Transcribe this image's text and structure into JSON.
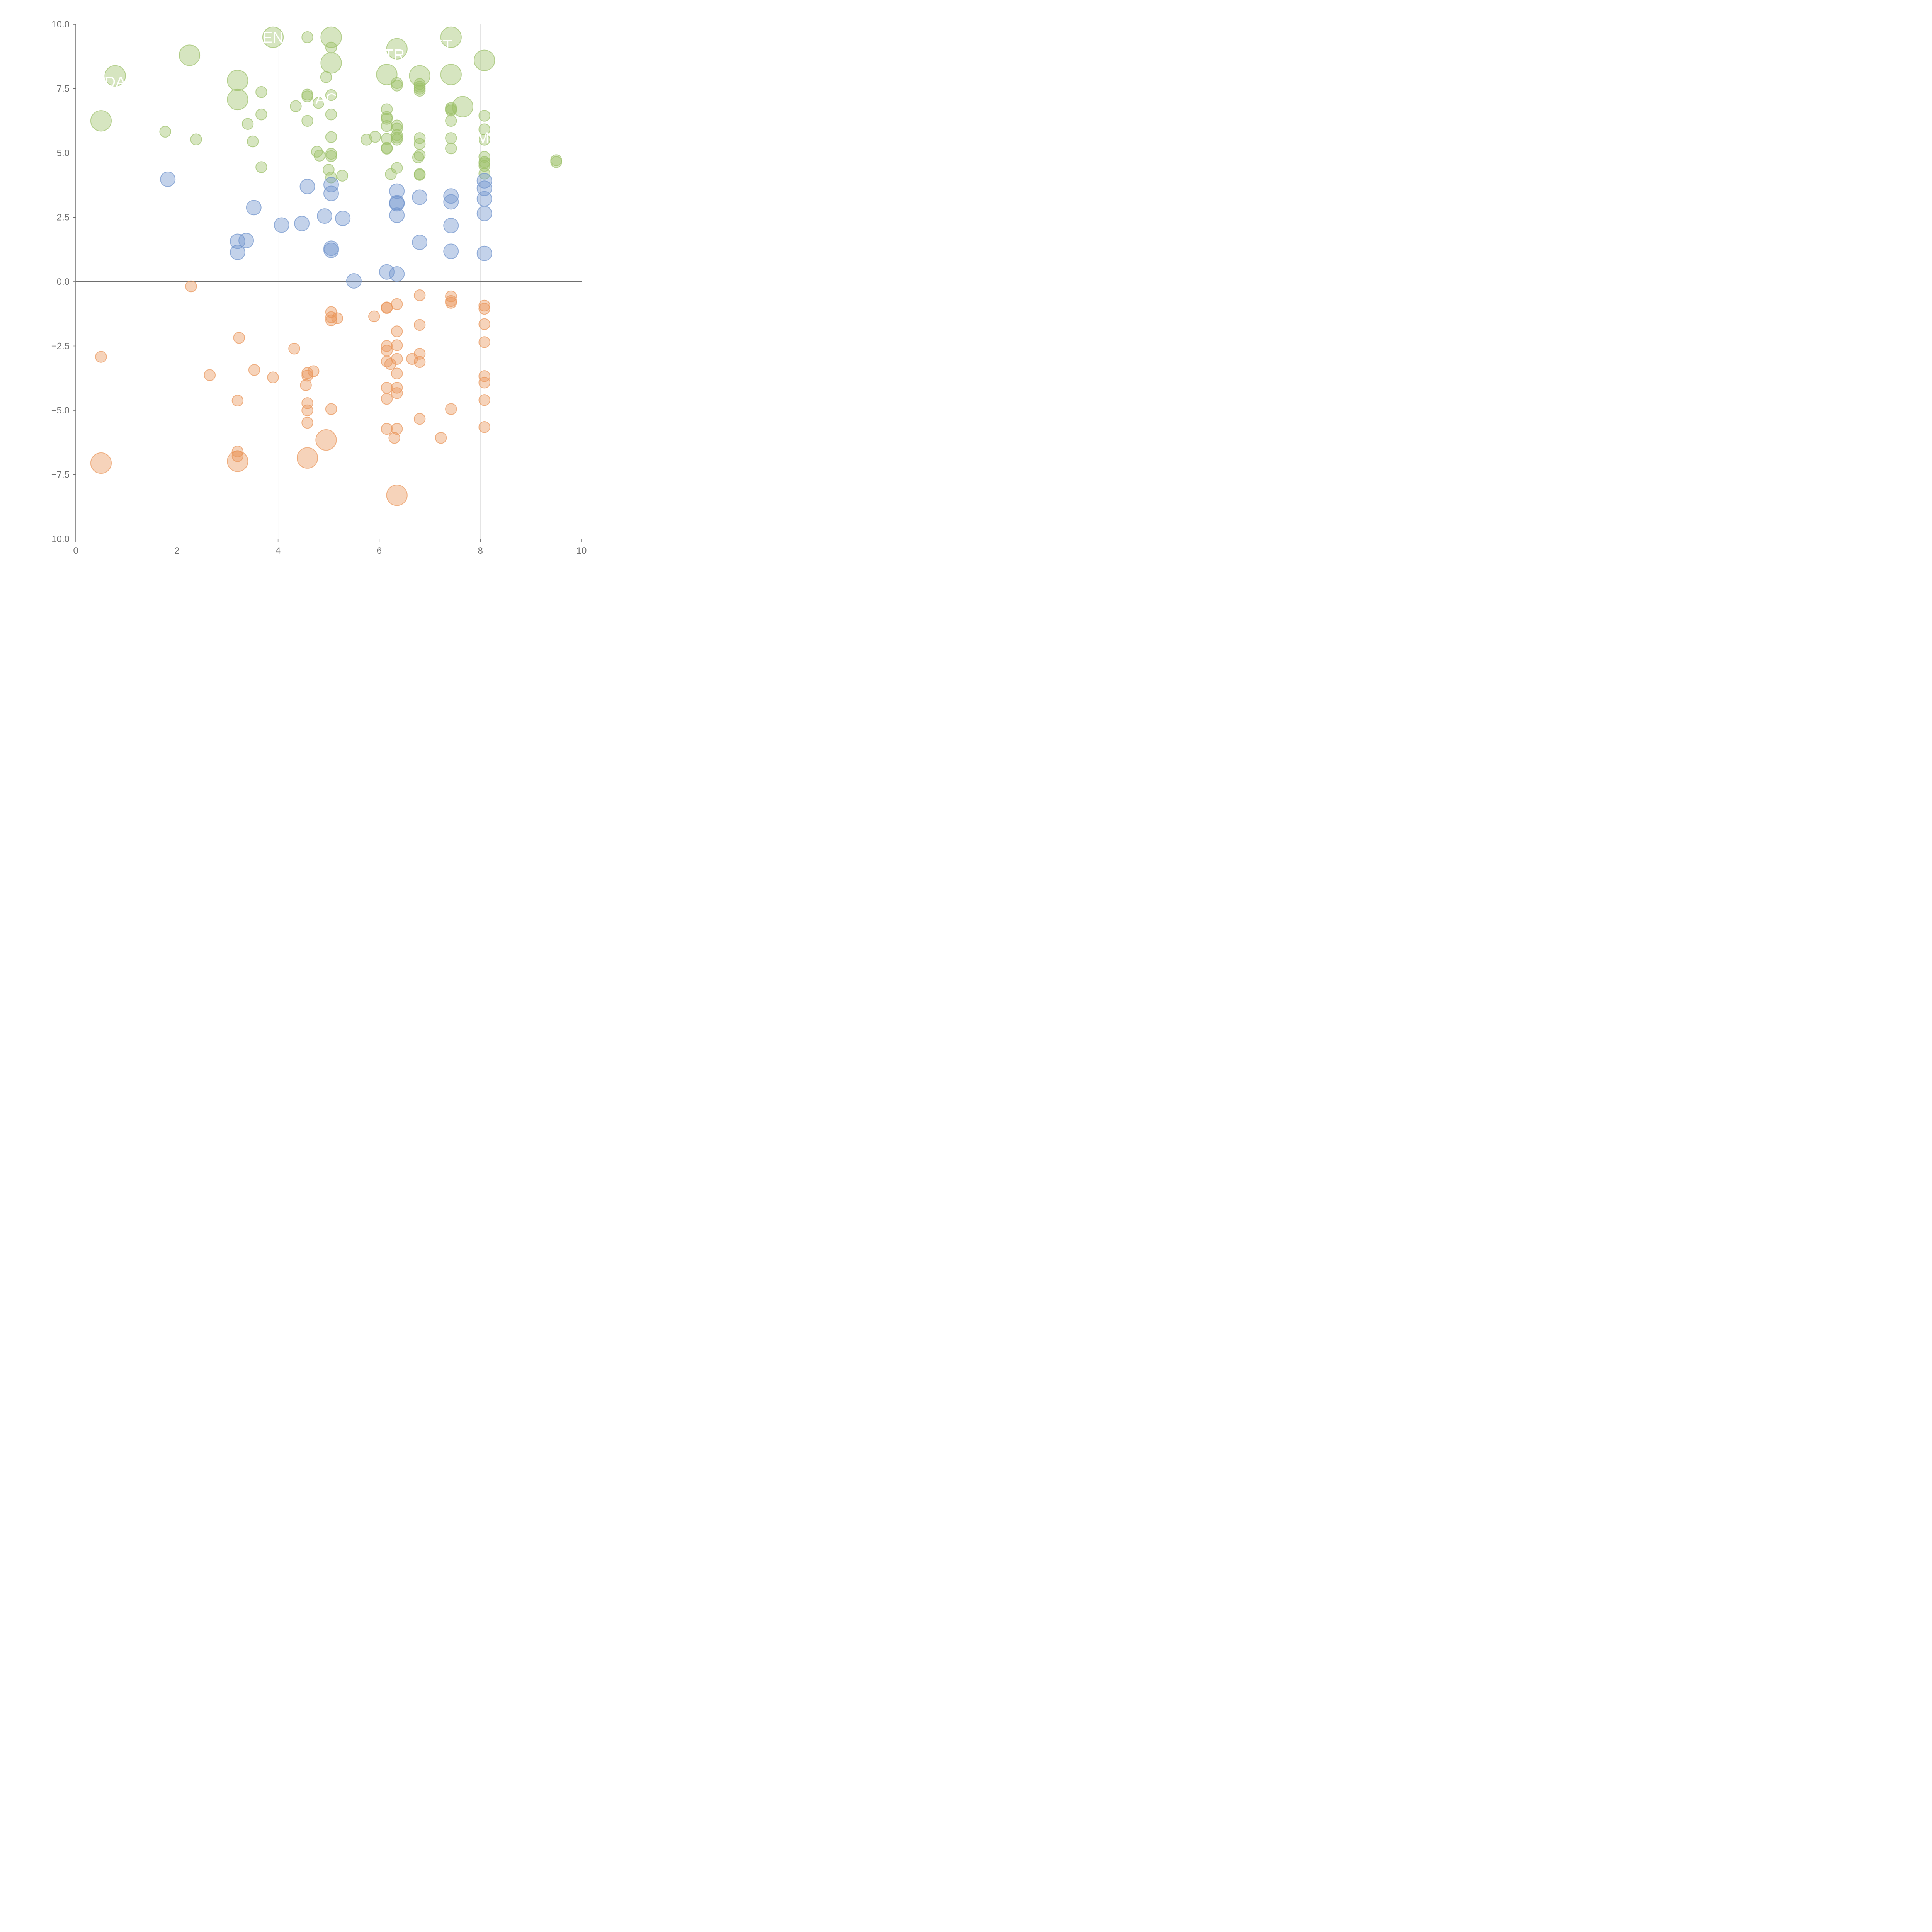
{
  "chart_data": {
    "type": "scatter",
    "title": "",
    "xlabel": "",
    "ylabel": "",
    "xlim": [
      0,
      10
    ],
    "ylim": [
      -10,
      10
    ],
    "x_ticks": [
      "0",
      "2",
      "4",
      "6",
      "8",
      "10"
    ],
    "y_ticks": [
      "−10.0",
      "−7.5",
      "−5.0",
      "−2.5",
      "0.0",
      "2.5",
      "5.0",
      "7.5",
      "10.0"
    ],
    "x_tick_values": [
      0,
      2,
      4,
      6,
      8,
      10
    ],
    "y_tick_values": [
      -10,
      -7.5,
      -5,
      -2.5,
      0,
      2.5,
      5,
      7.5,
      10
    ],
    "vertical_gridlines": [
      2,
      4,
      6,
      8
    ],
    "zero_line": 0,
    "colors": {
      "green": "#9dc16a",
      "blue": "#6f93cc",
      "orange": "#e9955a",
      "axis": "#6e6e6e",
      "grid": "#d9d9d9"
    },
    "series": [
      {
        "color": "green",
        "points": [
          [
            0.5,
            6.25,
            1.4
          ],
          [
            0.78,
            8.0,
            1.4
          ],
          [
            2.25,
            8.8,
            1.4
          ],
          [
            3.2,
            7.82,
            1.4
          ],
          [
            3.2,
            7.08,
            1.4
          ],
          [
            3.9,
            9.5,
            1.4
          ],
          [
            5.05,
            9.5,
            1.4
          ],
          [
            5.05,
            8.5,
            1.4
          ],
          [
            6.15,
            8.05,
            1.4
          ],
          [
            6.35,
            9.05,
            1.4
          ],
          [
            6.8,
            8.0,
            1.4
          ],
          [
            7.42,
            9.5,
            1.4
          ],
          [
            7.42,
            8.05,
            1.4
          ],
          [
            7.65,
            6.8,
            1.4
          ],
          [
            8.08,
            8.6,
            1.4
          ],
          [
            1.77,
            5.83,
            0.75
          ],
          [
            2.38,
            5.53,
            0.75
          ],
          [
            3.4,
            6.13,
            0.75
          ],
          [
            3.5,
            5.45,
            0.75
          ],
          [
            3.67,
            7.37,
            0.75
          ],
          [
            3.67,
            6.5,
            0.75
          ],
          [
            3.67,
            4.45,
            0.75
          ],
          [
            4.35,
            6.82,
            0.75
          ],
          [
            4.58,
            9.5,
            0.75
          ],
          [
            4.58,
            7.27,
            0.75
          ],
          [
            4.58,
            7.2,
            0.75
          ],
          [
            4.58,
            6.25,
            0.75
          ],
          [
            4.8,
            6.95,
            0.75
          ],
          [
            4.77,
            5.05,
            0.75
          ],
          [
            4.82,
            4.9,
            0.75
          ],
          [
            4.95,
            7.95,
            0.75
          ],
          [
            5.05,
            9.1,
            0.75
          ],
          [
            5.05,
            7.25,
            0.75
          ],
          [
            5.05,
            6.5,
            0.75
          ],
          [
            5.05,
            5.62,
            0.75
          ],
          [
            5.05,
            4.97,
            0.75
          ],
          [
            5.05,
            4.88,
            0.75
          ],
          [
            5.0,
            4.35,
            0.75
          ],
          [
            5.05,
            4.05,
            0.75
          ],
          [
            5.27,
            4.12,
            0.75
          ],
          [
            5.75,
            5.52,
            0.75
          ],
          [
            5.92,
            5.63,
            0.75
          ],
          [
            6.15,
            6.7,
            0.75
          ],
          [
            6.15,
            6.4,
            0.75
          ],
          [
            6.15,
            6.33,
            0.75
          ],
          [
            6.15,
            6.05,
            0.75
          ],
          [
            6.15,
            5.55,
            0.75
          ],
          [
            6.15,
            5.2,
            0.75
          ],
          [
            6.15,
            5.17,
            0.75
          ],
          [
            6.23,
            4.18,
            0.75
          ],
          [
            6.35,
            7.72,
            0.75
          ],
          [
            6.35,
            7.62,
            0.75
          ],
          [
            6.35,
            6.07,
            0.75
          ],
          [
            6.35,
            5.95,
            0.75
          ],
          [
            6.35,
            5.7,
            0.75
          ],
          [
            6.35,
            5.6,
            0.75
          ],
          [
            6.35,
            5.52,
            0.75
          ],
          [
            6.35,
            4.42,
            0.75
          ],
          [
            6.8,
            7.68,
            0.75
          ],
          [
            6.8,
            7.58,
            0.75
          ],
          [
            6.8,
            7.5,
            0.75
          ],
          [
            6.8,
            7.42,
            0.75
          ],
          [
            6.8,
            5.58,
            0.75
          ],
          [
            6.8,
            5.35,
            0.75
          ],
          [
            6.8,
            4.92,
            0.75
          ],
          [
            6.77,
            4.83,
            0.75
          ],
          [
            6.8,
            4.18,
            0.75
          ],
          [
            6.8,
            4.15,
            0.75
          ],
          [
            7.42,
            6.75,
            0.75
          ],
          [
            7.42,
            6.7,
            0.75
          ],
          [
            7.42,
            6.65,
            0.75
          ],
          [
            7.42,
            6.25,
            0.75
          ],
          [
            7.42,
            5.58,
            0.75
          ],
          [
            7.42,
            5.18,
            0.75
          ],
          [
            8.08,
            6.45,
            0.75
          ],
          [
            8.08,
            5.92,
            0.75
          ],
          [
            8.08,
            5.52,
            0.75
          ],
          [
            8.08,
            4.85,
            0.75
          ],
          [
            8.08,
            4.65,
            0.75
          ],
          [
            8.08,
            4.6,
            0.75
          ],
          [
            8.08,
            4.5,
            0.75
          ],
          [
            8.08,
            4.2,
            0.75
          ],
          [
            9.5,
            4.72,
            0.75
          ],
          [
            9.5,
            4.65,
            0.75
          ]
        ]
      },
      {
        "color": "blue",
        "points": [
          [
            1.82,
            3.98
          ],
          [
            3.2,
            1.57
          ],
          [
            3.2,
            1.14
          ],
          [
            3.37,
            1.6
          ],
          [
            3.52,
            2.88
          ],
          [
            4.07,
            2.2
          ],
          [
            4.47,
            2.26
          ],
          [
            4.58,
            3.7
          ],
          [
            4.92,
            2.55
          ],
          [
            5.05,
            3.77
          ],
          [
            5.05,
            3.43
          ],
          [
            5.05,
            1.3
          ],
          [
            5.05,
            1.22
          ],
          [
            5.28,
            2.46
          ],
          [
            5.5,
            0.03
          ],
          [
            6.15,
            0.38
          ],
          [
            6.35,
            3.52
          ],
          [
            6.35,
            3.07
          ],
          [
            6.35,
            3.03
          ],
          [
            6.35,
            2.58
          ],
          [
            6.35,
            0.3
          ],
          [
            6.8,
            3.28
          ],
          [
            6.8,
            1.53
          ],
          [
            7.42,
            3.33
          ],
          [
            7.42,
            3.1
          ],
          [
            7.42,
            2.18
          ],
          [
            7.42,
            1.18
          ],
          [
            8.08,
            3.92
          ],
          [
            8.08,
            3.63
          ],
          [
            8.08,
            3.22
          ],
          [
            8.08,
            2.65
          ],
          [
            8.08,
            1.1
          ]
        ]
      },
      {
        "color": "orange",
        "points": [
          [
            0.5,
            -2.92,
            0.75
          ],
          [
            2.28,
            -0.18,
            0.75
          ],
          [
            2.65,
            -3.63,
            0.75
          ],
          [
            3.23,
            -2.18,
            0.75
          ],
          [
            3.2,
            -4.62,
            0.75
          ],
          [
            3.2,
            -6.6,
            0.75
          ],
          [
            3.2,
            -6.78,
            0.75
          ],
          [
            3.53,
            -3.43,
            0.75
          ],
          [
            3.9,
            -3.72,
            0.75
          ],
          [
            4.32,
            -2.6,
            0.75
          ],
          [
            4.58,
            -3.55,
            0.75
          ],
          [
            4.58,
            -3.65,
            0.75
          ],
          [
            4.7,
            -3.48,
            0.75
          ],
          [
            4.55,
            -4.02,
            0.75
          ],
          [
            4.58,
            -4.72,
            0.75
          ],
          [
            4.58,
            -5.0,
            0.75
          ],
          [
            4.58,
            -5.48,
            0.75
          ],
          [
            5.05,
            -1.18,
            0.75
          ],
          [
            5.05,
            -1.38,
            0.75
          ],
          [
            5.05,
            -1.5,
            0.75
          ],
          [
            5.17,
            -1.42,
            0.75
          ],
          [
            5.05,
            -4.95,
            0.75
          ],
          [
            5.9,
            -1.35,
            0.75
          ],
          [
            6.15,
            -1.0,
            0.75
          ],
          [
            6.15,
            -1.02,
            0.75
          ],
          [
            6.15,
            -2.5,
            0.75
          ],
          [
            6.15,
            -2.68,
            0.75
          ],
          [
            6.15,
            -3.1,
            0.75
          ],
          [
            6.22,
            -3.2,
            0.75
          ],
          [
            6.15,
            -4.12,
            0.75
          ],
          [
            6.15,
            -4.55,
            0.75
          ],
          [
            6.15,
            -5.72,
            0.75
          ],
          [
            6.3,
            -6.07,
            0.75
          ],
          [
            6.35,
            -0.87,
            0.75
          ],
          [
            6.35,
            -1.93,
            0.75
          ],
          [
            6.35,
            -2.47,
            0.75
          ],
          [
            6.35,
            -3.0,
            0.75
          ],
          [
            6.35,
            -3.57,
            0.75
          ],
          [
            6.35,
            -4.12,
            0.75
          ],
          [
            6.35,
            -4.33,
            0.75
          ],
          [
            6.35,
            -5.72,
            0.75
          ],
          [
            6.65,
            -3.0,
            0.75
          ],
          [
            6.8,
            -0.53,
            0.75
          ],
          [
            6.8,
            -1.68,
            0.75
          ],
          [
            6.8,
            -2.8,
            0.75
          ],
          [
            6.8,
            -3.12,
            0.75
          ],
          [
            6.8,
            -5.33,
            0.75
          ],
          [
            7.22,
            -6.07,
            0.75
          ],
          [
            7.42,
            -0.57,
            0.75
          ],
          [
            7.42,
            -0.75,
            0.75
          ],
          [
            7.42,
            -0.82,
            0.75
          ],
          [
            7.42,
            -4.95,
            0.75
          ],
          [
            8.08,
            -0.93,
            0.75
          ],
          [
            8.08,
            -1.05,
            0.75
          ],
          [
            8.08,
            -1.65,
            0.75
          ],
          [
            8.08,
            -2.35,
            0.75
          ],
          [
            8.08,
            -3.67,
            0.75
          ],
          [
            8.08,
            -3.92,
            0.75
          ],
          [
            8.08,
            -4.6,
            0.75
          ],
          [
            8.08,
            -5.65,
            0.75
          ],
          [
            0.5,
            -7.05,
            1.4
          ],
          [
            3.2,
            -6.98,
            1.4
          ],
          [
            4.58,
            -6.85,
            1.4
          ],
          [
            4.95,
            -6.15,
            1.4
          ],
          [
            6.35,
            -8.3,
            1.4
          ]
        ]
      }
    ],
    "annotations": [
      {
        "text": "DA",
        "x": 0.78,
        "y": 7.77
      },
      {
        "text": "EN",
        "x": 3.9,
        "y": 9.5
      },
      {
        "text": "AC",
        "x": 4.95,
        "y": 7.12
      },
      {
        "text": "TR",
        "x": 6.3,
        "y": 8.82
      },
      {
        "text": "ET",
        "x": 7.25,
        "y": 9.2
      },
      {
        "text": "M",
        "x": 8.05,
        "y": 5.6
      }
    ]
  }
}
